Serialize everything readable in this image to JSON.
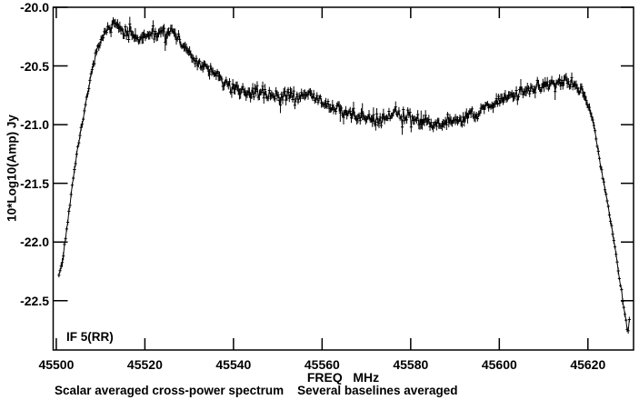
{
  "window": {
    "kind": "spectral-plot",
    "background": "#ffffff",
    "foreground": "#000000"
  },
  "chart_data": {
    "type": "line",
    "title": "",
    "xlabel": "FREQ   MHz",
    "ylabel": "10*Log10(Amp) Jy",
    "annotation": "IF 5(RR)",
    "caption_left": "Scalar averaged cross-power spectrum",
    "caption_right": "Several baselines averaged",
    "xlim": [
      45499.3,
      45630.3
    ],
    "ylim": [
      -22.92,
      -20.0
    ],
    "xticks": [
      45500,
      45520,
      45540,
      45560,
      45580,
      45600,
      45620
    ],
    "xtick_labels": [
      "45500",
      "45520",
      "45540",
      "45560",
      "45580",
      "45600",
      "45620"
    ],
    "yticks": [
      -20.0,
      -20.5,
      -21.0,
      -21.5,
      -22.0,
      -22.5
    ],
    "ytick_labels": [
      "-20.0",
      "-20.5",
      "-21.0",
      "-21.5",
      "-22.0",
      "-22.5"
    ],
    "grid": false,
    "line_color": "#000000",
    "marker": "plus-with-vertical-errorbar",
    "series": [
      {
        "name": "scalar-averaged cross-power spectrum IF 5(RR)",
        "channel_step_mhz": 0.25,
        "freq_start_mhz": 45500.6,
        "freq_end_mhz": 45629.5,
        "noise_sigma_db": 0.028,
        "errorbar_halflen_db": [
          0.02,
          0.05
        ],
        "seed": 42,
        "envelope": [
          [
            45500.6,
            -22.3
          ],
          [
            45501.5,
            -22.12
          ],
          [
            45502.5,
            -21.85
          ],
          [
            45503.5,
            -21.55
          ],
          [
            45504.5,
            -21.28
          ],
          [
            45505.5,
            -21.05
          ],
          [
            45506.5,
            -20.85
          ],
          [
            45507.5,
            -20.63
          ],
          [
            45508.5,
            -20.47
          ],
          [
            45509.5,
            -20.33
          ],
          [
            45510.5,
            -20.24
          ],
          [
            45511.5,
            -20.18
          ],
          [
            45513.0,
            -20.16
          ],
          [
            45515.0,
            -20.2
          ],
          [
            45517.0,
            -20.21
          ],
          [
            45518.5,
            -20.28
          ],
          [
            45520.0,
            -20.24
          ],
          [
            45522.0,
            -20.24
          ],
          [
            45524.0,
            -20.2
          ],
          [
            45526.0,
            -20.22
          ],
          [
            45527.5,
            -20.26
          ],
          [
            45529.0,
            -20.34
          ],
          [
            45531.0,
            -20.44
          ],
          [
            45533.0,
            -20.5
          ],
          [
            45535.0,
            -20.54
          ],
          [
            45537.0,
            -20.61
          ],
          [
            45539.0,
            -20.67
          ],
          [
            45541.0,
            -20.7
          ],
          [
            45543.0,
            -20.72
          ],
          [
            45545.0,
            -20.74
          ],
          [
            45547.0,
            -20.73
          ],
          [
            45549.0,
            -20.75
          ],
          [
            45551.0,
            -20.76
          ],
          [
            45553.0,
            -20.74
          ],
          [
            45555.0,
            -20.76
          ],
          [
            45557.0,
            -20.75
          ],
          [
            45559.0,
            -20.78
          ],
          [
            45561.0,
            -20.83
          ],
          [
            45563.0,
            -20.87
          ],
          [
            45565.0,
            -20.89
          ],
          [
            45567.0,
            -20.92
          ],
          [
            45569.0,
            -20.94
          ],
          [
            45571.0,
            -20.96
          ],
          [
            45573.0,
            -20.96
          ],
          [
            45575.0,
            -20.92
          ],
          [
            45577.0,
            -20.9
          ],
          [
            45579.0,
            -20.93
          ],
          [
            45581.0,
            -20.95
          ],
          [
            45583.0,
            -20.96
          ],
          [
            45585.0,
            -20.98
          ],
          [
            45587.0,
            -21.0
          ],
          [
            45589.0,
            -20.98
          ],
          [
            45591.0,
            -20.96
          ],
          [
            45593.0,
            -20.93
          ],
          [
            45595.0,
            -20.9
          ],
          [
            45597.0,
            -20.85
          ],
          [
            45599.0,
            -20.81
          ],
          [
            45601.0,
            -20.78
          ],
          [
            45603.0,
            -20.75
          ],
          [
            45605.0,
            -20.72
          ],
          [
            45607.0,
            -20.7
          ],
          [
            45609.0,
            -20.68
          ],
          [
            45611.0,
            -20.66
          ],
          [
            45613.0,
            -20.64
          ],
          [
            45615.0,
            -20.63
          ],
          [
            45616.5,
            -20.65
          ],
          [
            45618.0,
            -20.69
          ],
          [
            45619.0,
            -20.74
          ],
          [
            45620.0,
            -20.82
          ],
          [
            45621.0,
            -20.95
          ],
          [
            45622.0,
            -21.15
          ],
          [
            45623.0,
            -21.38
          ],
          [
            45624.0,
            -21.58
          ],
          [
            45625.0,
            -21.78
          ],
          [
            45626.0,
            -22.02
          ],
          [
            45627.0,
            -22.28
          ],
          [
            45627.8,
            -22.48
          ],
          [
            45628.5,
            -22.65
          ],
          [
            45629.0,
            -22.78
          ],
          [
            45629.3,
            -22.72
          ],
          [
            45629.5,
            -22.6
          ]
        ]
      }
    ]
  }
}
